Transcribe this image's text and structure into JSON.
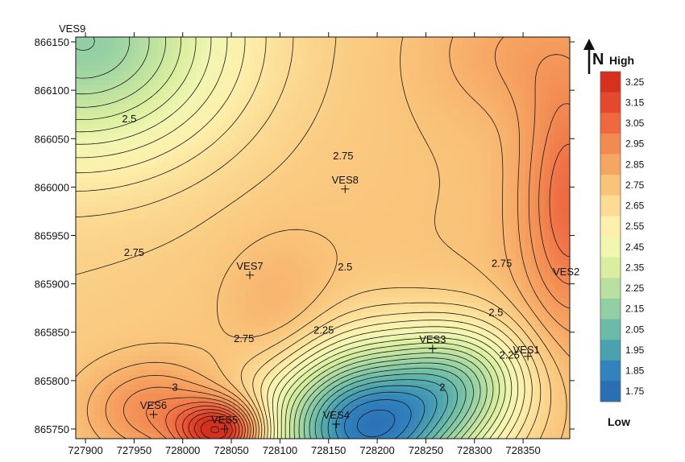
{
  "chart_data": {
    "type": "heatmap",
    "title": "",
    "xlabel": "",
    "ylabel": "",
    "xlim": [
      727890,
      728398
    ],
    "ylim": [
      865740,
      866155
    ],
    "x_ticks": [
      727900,
      727950,
      728000,
      728050,
      728100,
      728150,
      728200,
      728250,
      728300,
      728350
    ],
    "y_ticks": [
      865750,
      865800,
      865850,
      865900,
      865950,
      866000,
      866050,
      866100,
      866150
    ],
    "grid": false,
    "stations": [
      {
        "name": "VES1",
        "x": 728355,
        "y": 865825
      },
      {
        "name": "VES2",
        "x": 728395,
        "y": 865905
      },
      {
        "name": "VES3",
        "x": 728257,
        "y": 865833
      },
      {
        "name": "VES4",
        "x": 728158,
        "y": 865755
      },
      {
        "name": "VES5",
        "x": 728043,
        "y": 865750
      },
      {
        "name": "VES6",
        "x": 727970,
        "y": 865765
      },
      {
        "name": "VES7",
        "x": 728069,
        "y": 865909
      },
      {
        "name": "VES8",
        "x": 728167,
        "y": 865998
      },
      {
        "name": "VES9",
        "x": 727890,
        "y": 866160
      }
    ],
    "contour_interval": 0.05,
    "contour_labels": [
      {
        "text": "2.5",
        "x": 727945,
        "y": 866070
      },
      {
        "text": "2.75",
        "x": 728165,
        "y": 866032
      },
      {
        "text": "2.75",
        "x": 727950,
        "y": 865932
      },
      {
        "text": "2.75",
        "x": 728063,
        "y": 865843
      },
      {
        "text": "2.5",
        "x": 728167,
        "y": 865917
      },
      {
        "text": "2.25",
        "x": 728145,
        "y": 865852
      },
      {
        "text": "2",
        "x": 728267,
        "y": 865793
      },
      {
        "text": "2.75",
        "x": 728328,
        "y": 865921
      },
      {
        "text": "2.5",
        "x": 728322,
        "y": 865870
      },
      {
        "text": "2.25",
        "x": 728336,
        "y": 865826
      },
      {
        "text": "3",
        "x": 727992,
        "y": 865793
      }
    ],
    "legend": {
      "position": "right",
      "title_high": "High",
      "title_low": "Low",
      "values": [
        "3.25",
        "3.15",
        "3.05",
        "2.95",
        "2.85",
        "2.75",
        "2.65",
        "2.55",
        "2.45",
        "2.35",
        "2.25",
        "2.15",
        "2.05",
        "1.95",
        "1.85",
        "1.75"
      ],
      "colors": [
        "#d7301f",
        "#e5482c",
        "#ef6840",
        "#f28a52",
        "#f6a663",
        "#f9c47a",
        "#fcdb94",
        "#fdf0ac",
        "#f1f6b1",
        "#d9ee9e",
        "#b9e0a0",
        "#92cfa3",
        "#6bbba8",
        "#4aa1b0",
        "#3182bd",
        "#2a6fb5"
      ]
    },
    "north_arrow": "N"
  }
}
